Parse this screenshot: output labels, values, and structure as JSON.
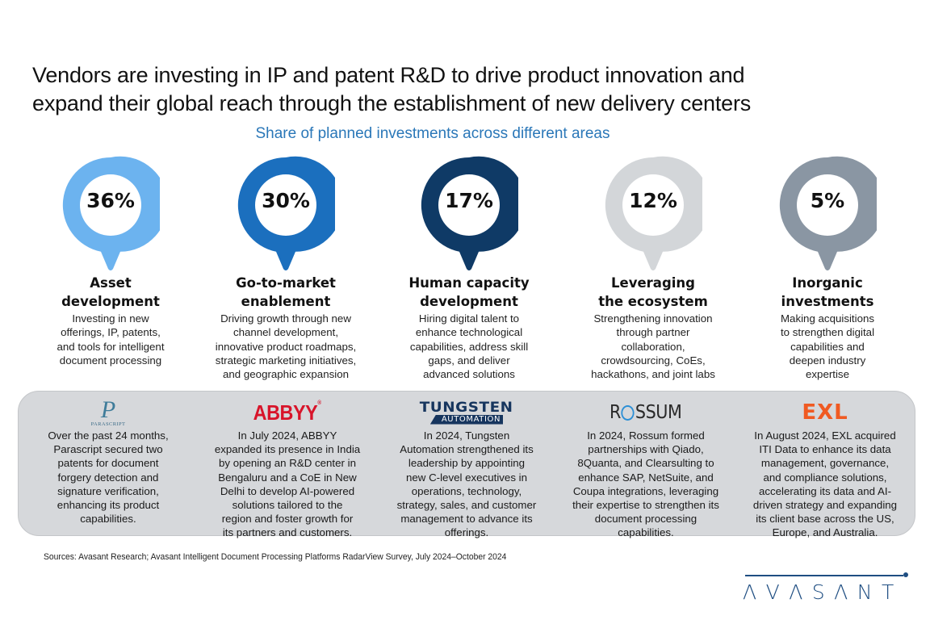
{
  "header": {
    "title_line1": "Vendors are investing in IP and patent R&D to drive product innovation and",
    "title_line2": "expand their global reach through the establishment of new delivery centers",
    "subtitle": "Share of planned investments across different areas"
  },
  "chart_data": {
    "type": "table",
    "title": "Share of planned investments across different areas",
    "categories": [
      "Asset development",
      "Go-to-market enablement",
      "Human capacity development",
      "Leveraging the ecosystem",
      "Inorganic investments"
    ],
    "values": [
      36,
      30,
      17,
      12,
      5
    ],
    "unit": "%"
  },
  "areas": [
    {
      "pct": "36%",
      "value": 36,
      "color": "#6cb3ef",
      "title_line1": "Asset",
      "title_line2": "development",
      "desc": [
        "Investing in new",
        "offerings, IP, patents,",
        "and tools for intelligent",
        "document processing"
      ]
    },
    {
      "pct": "30%",
      "value": 30,
      "color": "#1b6fbe",
      "title_line1": "Go-to-market",
      "title_line2": "enablement",
      "desc": [
        "Driving growth through new",
        "channel development,",
        "innovative product roadmaps,",
        "strategic marketing initiatives,",
        "and geographic expansion"
      ]
    },
    {
      "pct": "17%",
      "value": 17,
      "color": "#0f3a66",
      "title_line1": "Human capacity",
      "title_line2": "development",
      "desc": [
        "Hiring digital talent to",
        "enhance technological",
        "capabilities, address skill",
        "gaps, and deliver",
        "advanced solutions"
      ]
    },
    {
      "pct": "12%",
      "value": 12,
      "color": "#d3d6d9",
      "title_line1": "Leveraging",
      "title_line2": "the ecosystem",
      "desc": [
        "Strengthening innovation",
        "through partner",
        "collaboration,",
        "crowdsourcing, CoEs,",
        "hackathons, and joint labs"
      ]
    },
    {
      "pct": "5%",
      "value": 5,
      "color": "#8a96a3",
      "title_line1": "Inorganic",
      "title_line2": "investments",
      "desc": [
        "Making acquisitions",
        "to strengthen digital",
        "capabilities and",
        "deepen industry",
        "expertise"
      ]
    }
  ],
  "vendors": [
    {
      "logo": "PARASCRIPT",
      "logo_glyph": "P",
      "logo_icon": "parascript-logo",
      "text": [
        "Over the past 24 months,",
        "Parascript secured two",
        "patents for document",
        "forgery detection and",
        "signature verification,",
        "enhancing its product",
        "capabilities."
      ]
    },
    {
      "logo": "ABBYY",
      "logo_mark": "®",
      "logo_icon": "abbyy-logo",
      "text": [
        "In July 2024, ABBYY",
        "expanded its presence in India",
        "by opening an R&D center in",
        "Bengaluru and a CoE in New",
        "Delhi to develop AI-powered",
        "solutions tailored to the",
        "region and foster growth for",
        "its partners and customers."
      ]
    },
    {
      "logo": "TUNGSTEN",
      "logo_sub": "AUTOMATION",
      "logo_icon": "tungsten-automation-logo",
      "text": [
        "In 2024, Tungsten",
        "Automation strengthened its",
        "leadership by appointing",
        "new C-level executives in",
        "operations, technology,",
        "strategy, sales, and customer",
        "management to advance its",
        "offerings."
      ]
    },
    {
      "logo_a": "R",
      "logo_b": "SSUM",
      "logo_icon": "rossum-logo",
      "text": [
        "In 2024, Rossum formed",
        "partnerships with Qiado,",
        "8Quanta, and Clearsulting to",
        "enhance SAP, NetSuite, and",
        "Coupa integrations, leveraging",
        "their expertise to strengthen its",
        "document processing",
        "capabilities."
      ]
    },
    {
      "logo": "EXL",
      "logo_icon": "exl-logo",
      "text": [
        "In August 2024, EXL acquired",
        "ITI Data to enhance its data",
        "management, governance,",
        "and compliance solutions,",
        "accelerating its data and AI-",
        "driven strategy and expanding",
        "its client base across the US,",
        "Europe, and Australia."
      ]
    }
  ],
  "footer": {
    "sources": "Sources: Avasant Research; Avasant Intelligent Document Processing Platforms RadarView Survey, July 2024–October 2024",
    "brand": "AVASANT",
    "brand_color": "#1f4e82"
  }
}
